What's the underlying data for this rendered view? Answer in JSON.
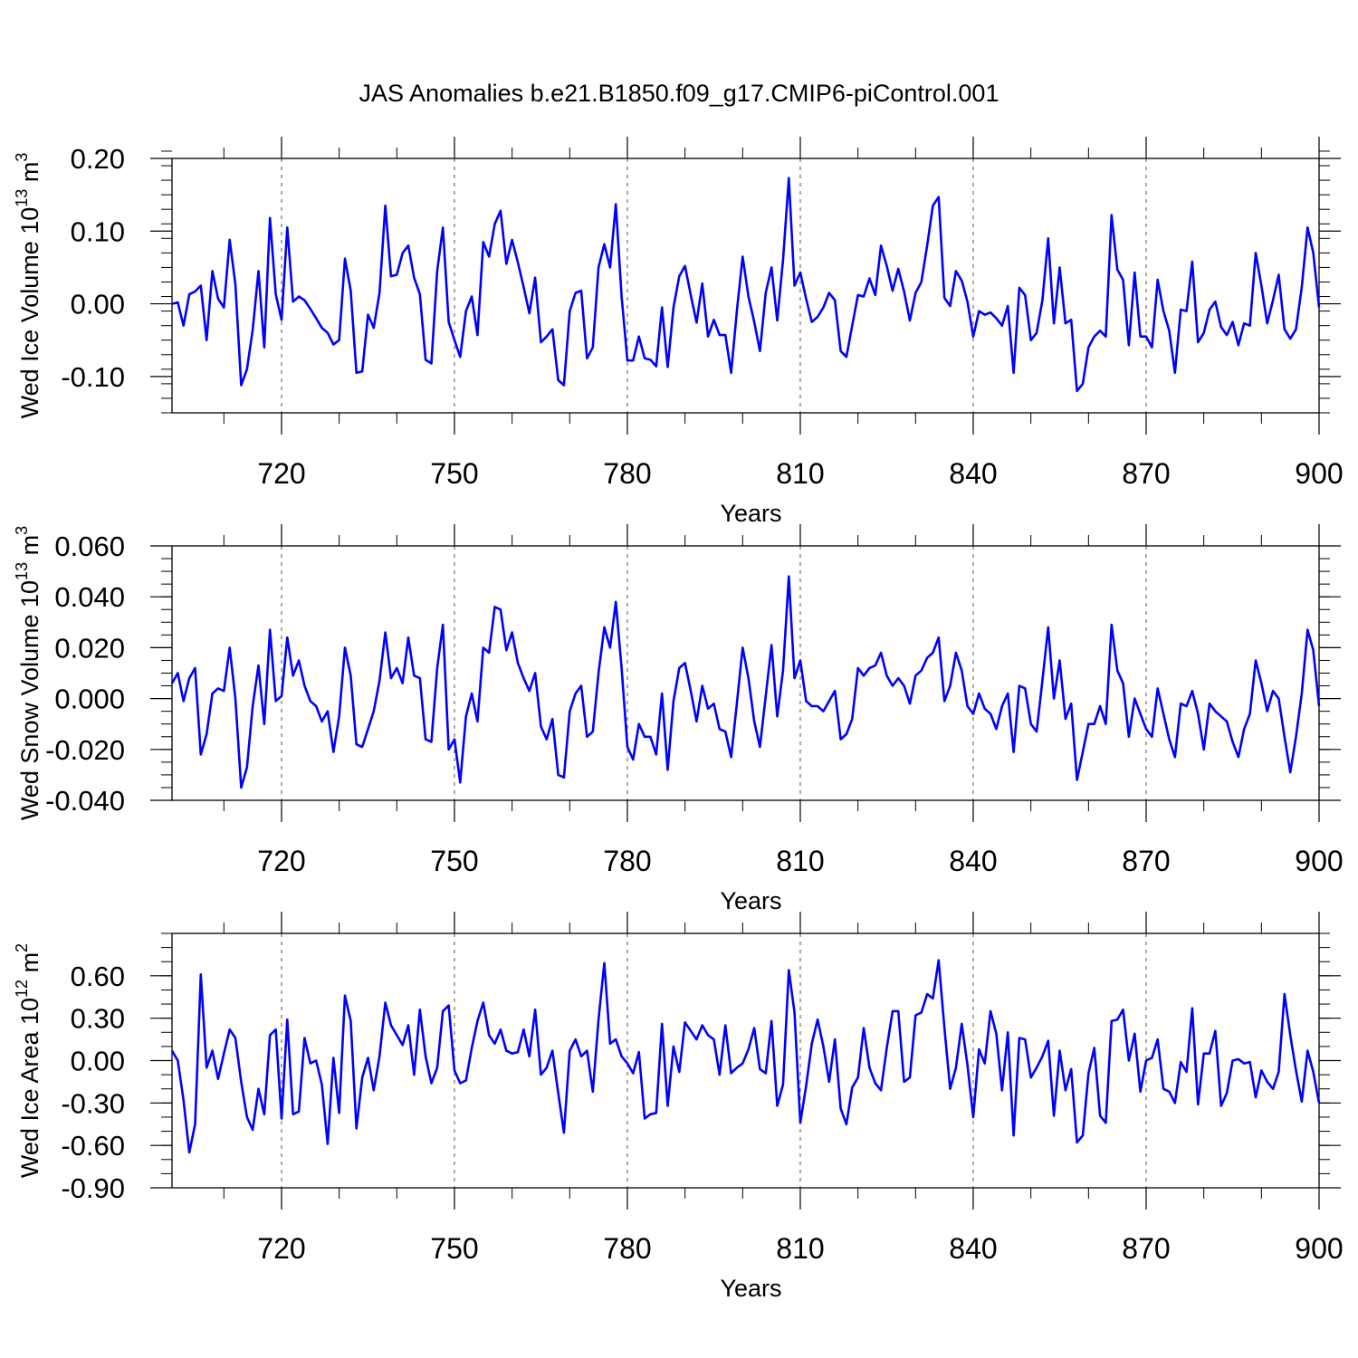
{
  "figure_title": "JAS Anomalies b.e21.B1850.f09_g17.CMIP6-piControl.001",
  "chart_data": [
    {
      "type": "line",
      "ylabel": "Wed Ice Volume 10",
      "ylabel_sup": "13",
      "ylabel_unit": "m",
      "ylabel_unit_sup": "3",
      "xlabel": "Years",
      "xlim": [
        701,
        900
      ],
      "ylim": [
        -0.15,
        0.2
      ],
      "x_major_ticks": [
        720,
        750,
        780,
        810,
        840,
        870,
        900
      ],
      "y_major_ticks": [
        -0.1,
        0.0,
        0.1,
        0.2
      ],
      "y_tick_labels": [
        "-0.10",
        "0.00",
        "0.10",
        "0.20"
      ],
      "y_minor_step": 0.02,
      "grid": "vertical dashed at major x ticks",
      "line_color": "#0000ff",
      "series": [
        {
          "name": "Wed Ice Volume",
          "x_start": 701,
          "values": [
            0.0,
            0.002,
            -0.03,
            0.013,
            0.017,
            0.025,
            -0.05,
            0.045,
            0.007,
            -0.005,
            0.088,
            0.027,
            -0.112,
            -0.09,
            -0.036,
            0.045,
            -0.06,
            0.118,
            0.013,
            -0.022,
            0.105,
            0.003,
            0.01,
            0.005,
            -0.007,
            -0.02,
            -0.033,
            -0.04,
            -0.056,
            -0.05,
            0.062,
            0.018,
            -0.095,
            -0.093,
            -0.015,
            -0.033,
            0.015,
            0.135,
            0.038,
            0.04,
            0.07,
            0.08,
            0.036,
            0.013,
            -0.077,
            -0.082,
            0.045,
            0.105,
            -0.025,
            -0.05,
            -0.073,
            -0.01,
            0.01,
            -0.043,
            0.085,
            0.065,
            0.11,
            0.128,
            0.055,
            0.088,
            0.057,
            0.023,
            -0.013,
            0.036,
            -0.053,
            -0.045,
            -0.035,
            -0.105,
            -0.112,
            -0.01,
            0.015,
            0.018,
            -0.075,
            -0.06,
            0.05,
            0.082,
            0.05,
            0.137,
            0.01,
            -0.078,
            -0.078,
            -0.045,
            -0.075,
            -0.077,
            -0.086,
            -0.005,
            -0.087,
            -0.005,
            0.038,
            0.052,
            0.012,
            -0.026,
            0.028,
            -0.045,
            -0.022,
            -0.043,
            -0.043,
            -0.095,
            -0.01,
            0.065,
            0.01,
            -0.025,
            -0.065,
            0.015,
            0.05,
            -0.023,
            0.06,
            0.173,
            0.025,
            0.043,
            0.007,
            -0.025,
            -0.018,
            -0.005,
            0.015,
            0.005,
            -0.065,
            -0.073,
            -0.03,
            0.012,
            0.01,
            0.035,
            0.012,
            0.08,
            0.052,
            0.018,
            0.048,
            0.017,
            -0.023,
            0.015,
            0.03,
            0.08,
            0.135,
            0.147,
            0.008,
            -0.003,
            0.045,
            0.032,
            0.003,
            -0.045,
            -0.01,
            -0.015,
            -0.012,
            -0.02,
            -0.03,
            -0.003,
            -0.095,
            0.022,
            0.012,
            -0.05,
            -0.04,
            0.005,
            0.09,
            -0.027,
            0.05,
            -0.027,
            -0.022,
            -0.12,
            -0.11,
            -0.06,
            -0.045,
            -0.037,
            -0.045,
            0.122,
            0.047,
            0.033,
            -0.057,
            0.043,
            -0.045,
            -0.045,
            -0.06,
            0.033,
            -0.01,
            -0.037,
            -0.095,
            -0.008,
            -0.01,
            0.058,
            -0.053,
            -0.04,
            -0.008,
            0.003,
            -0.032,
            -0.043,
            -0.025,
            -0.057,
            -0.027,
            -0.03,
            0.07,
            0.025,
            -0.027,
            0.005,
            0.04,
            -0.035,
            -0.048,
            -0.035,
            0.023,
            0.105,
            0.07,
            -0.005
          ]
        }
      ]
    },
    {
      "type": "line",
      "ylabel": "Wed Snow Volume 10",
      "ylabel_sup": "13",
      "ylabel_unit": "m",
      "ylabel_unit_sup": "3",
      "xlabel": "Years",
      "xlim": [
        701,
        900
      ],
      "ylim": [
        -0.04,
        0.06
      ],
      "x_major_ticks": [
        720,
        750,
        780,
        810,
        840,
        870,
        900
      ],
      "y_major_ticks": [
        -0.04,
        -0.02,
        0.0,
        0.02,
        0.04,
        0.06
      ],
      "y_tick_labels": [
        "-0.040",
        "-0.020",
        "0.000",
        "0.020",
        "0.040",
        "0.060"
      ],
      "y_minor_step": 0.005,
      "grid": "vertical dashed at major x ticks",
      "line_color": "#0000ff",
      "series": [
        {
          "name": "Wed Snow Volume",
          "x_start": 701,
          "values": [
            0.006,
            0.01,
            -0.001,
            0.008,
            0.012,
            -0.022,
            -0.014,
            0.002,
            0.004,
            0.003,
            0.02,
            0.0,
            -0.035,
            -0.027,
            -0.003,
            0.013,
            -0.01,
            0.027,
            -0.001,
            0.001,
            0.024,
            0.009,
            0.015,
            0.005,
            -0.001,
            -0.003,
            -0.009,
            -0.005,
            -0.021,
            -0.007,
            0.02,
            0.009,
            -0.018,
            -0.019,
            -0.012,
            -0.005,
            0.007,
            0.026,
            0.008,
            0.012,
            0.006,
            0.024,
            0.009,
            0.008,
            -0.016,
            -0.017,
            0.012,
            0.029,
            -0.02,
            -0.016,
            -0.033,
            -0.007,
            0.002,
            -0.009,
            0.02,
            0.018,
            0.036,
            0.035,
            0.019,
            0.026,
            0.014,
            0.008,
            0.003,
            0.01,
            -0.011,
            -0.016,
            -0.008,
            -0.03,
            -0.031,
            -0.005,
            0.002,
            0.005,
            -0.015,
            -0.013,
            0.01,
            0.028,
            0.02,
            0.038,
            0.012,
            -0.019,
            -0.024,
            -0.01,
            -0.015,
            -0.015,
            -0.022,
            0.002,
            -0.028,
            -0.001,
            0.012,
            0.014,
            0.003,
            -0.009,
            0.005,
            -0.004,
            -0.002,
            -0.012,
            -0.013,
            -0.023,
            -0.002,
            0.02,
            0.008,
            -0.009,
            -0.019,
            0.001,
            0.021,
            -0.007,
            0.011,
            0.048,
            0.008,
            0.015,
            -0.001,
            -0.003,
            -0.003,
            -0.005,
            -0.001,
            0.003,
            -0.016,
            -0.014,
            -0.008,
            0.012,
            0.009,
            0.012,
            0.013,
            0.018,
            0.009,
            0.005,
            0.008,
            0.005,
            -0.002,
            0.009,
            0.011,
            0.016,
            0.018,
            0.024,
            -0.001,
            0.005,
            0.018,
            0.011,
            -0.003,
            -0.006,
            0.002,
            -0.004,
            -0.006,
            -0.012,
            -0.003,
            0.002,
            -0.021,
            0.005,
            0.004,
            -0.01,
            -0.013,
            0.007,
            0.028,
            0.0,
            0.015,
            -0.008,
            -0.002,
            -0.032,
            -0.021,
            -0.01,
            -0.01,
            -0.003,
            -0.01,
            0.029,
            0.011,
            0.006,
            -0.015,
            0.0,
            -0.006,
            -0.012,
            -0.015,
            0.004,
            -0.006,
            -0.016,
            -0.023,
            -0.002,
            -0.003,
            0.003,
            -0.006,
            -0.02,
            -0.002,
            -0.005,
            -0.007,
            -0.009,
            -0.017,
            -0.023,
            -0.012,
            -0.006,
            0.015,
            0.006,
            -0.005,
            0.003,
            0.0,
            -0.015,
            -0.029,
            -0.015,
            0.002,
            0.027,
            0.019,
            -0.003
          ]
        }
      ]
    },
    {
      "type": "line",
      "ylabel": "Wed Ice Area 10",
      "ylabel_sup": "12",
      "ylabel_unit": "m",
      "ylabel_unit_sup": "2",
      "xlabel": "Years",
      "xlim": [
        701,
        900
      ],
      "ylim": [
        -0.9,
        0.9
      ],
      "x_major_ticks": [
        720,
        750,
        780,
        810,
        840,
        870,
        900
      ],
      "y_major_ticks": [
        -0.9,
        -0.6,
        -0.3,
        0.0,
        0.3,
        0.6
      ],
      "y_tick_labels": [
        "-0.90",
        "-0.60",
        "-0.30",
        "0.00",
        "0.30",
        "0.60"
      ],
      "y_minor_step": 0.1,
      "grid": "vertical dashed at major x ticks",
      "line_color": "#0000ff",
      "series": [
        {
          "name": "Wed Ice Area",
          "x_start": 701,
          "values": [
            0.07,
            0.0,
            -0.28,
            -0.65,
            -0.45,
            0.61,
            -0.05,
            0.07,
            -0.13,
            0.05,
            0.22,
            0.16,
            -0.15,
            -0.4,
            -0.49,
            -0.2,
            -0.38,
            0.18,
            0.22,
            -0.41,
            0.29,
            -0.38,
            -0.36,
            0.16,
            -0.02,
            0.0,
            -0.17,
            -0.59,
            0.02,
            -0.37,
            0.46,
            0.28,
            -0.48,
            -0.12,
            0.02,
            -0.21,
            0.03,
            0.41,
            0.25,
            0.18,
            0.11,
            0.25,
            -0.1,
            0.36,
            0.03,
            -0.16,
            -0.05,
            0.35,
            0.39,
            -0.07,
            -0.16,
            -0.14,
            0.09,
            0.28,
            0.41,
            0.18,
            0.12,
            0.22,
            0.07,
            0.05,
            0.06,
            0.22,
            0.03,
            0.36,
            -0.1,
            -0.05,
            0.07,
            -0.23,
            -0.51,
            0.07,
            0.15,
            0.03,
            0.07,
            -0.22,
            0.29,
            0.69,
            0.12,
            0.15,
            0.03,
            -0.02,
            -0.09,
            0.06,
            -0.41,
            -0.38,
            -0.37,
            0.26,
            -0.32,
            0.1,
            -0.08,
            0.27,
            0.21,
            0.15,
            0.25,
            0.18,
            0.15,
            -0.1,
            0.25,
            -0.09,
            -0.05,
            -0.02,
            0.08,
            0.23,
            -0.06,
            -0.09,
            0.28,
            -0.32,
            -0.17,
            0.64,
            0.34,
            -0.44,
            -0.18,
            0.12,
            0.29,
            0.1,
            -0.15,
            0.15,
            -0.34,
            -0.45,
            -0.19,
            -0.12,
            0.23,
            -0.05,
            -0.16,
            -0.21,
            0.09,
            0.35,
            0.35,
            -0.15,
            -0.12,
            0.32,
            0.34,
            0.47,
            0.44,
            0.71,
            0.23,
            -0.2,
            -0.05,
            0.26,
            -0.03,
            -0.4,
            0.08,
            -0.02,
            0.35,
            0.19,
            -0.21,
            0.2,
            -0.53,
            0.16,
            0.15,
            -0.12,
            -0.05,
            0.03,
            0.14,
            -0.39,
            0.07,
            -0.21,
            -0.06,
            -0.58,
            -0.53,
            -0.09,
            0.09,
            -0.39,
            -0.44,
            0.28,
            0.29,
            0.36,
            0.0,
            0.19,
            -0.22,
            0.0,
            0.02,
            0.15,
            -0.2,
            -0.22,
            -0.3,
            -0.01,
            -0.08,
            0.37,
            -0.31,
            0.05,
            0.05,
            0.21,
            -0.32,
            -0.23,
            0.0,
            0.01,
            -0.02,
            -0.01,
            -0.26,
            -0.07,
            -0.15,
            -0.2,
            -0.08,
            0.47,
            0.18,
            -0.07,
            -0.29,
            0.07,
            -0.08,
            -0.3
          ]
        }
      ]
    }
  ]
}
